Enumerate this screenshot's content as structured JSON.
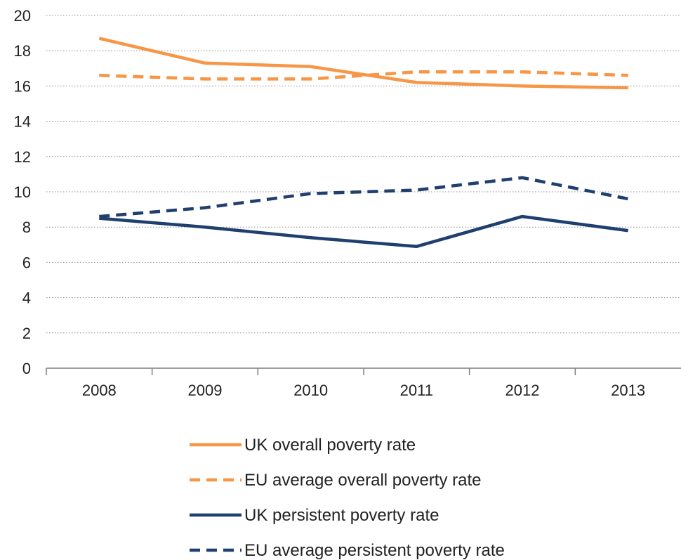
{
  "chart_data": {
    "type": "line",
    "title": "",
    "xlabel": "",
    "ylabel": "",
    "x": [
      "2008",
      "2009",
      "2010",
      "2011",
      "2012",
      "2013"
    ],
    "ylim": [
      0,
      20
    ],
    "yticks": [
      0,
      2,
      4,
      6,
      8,
      10,
      12,
      14,
      16,
      18,
      20
    ],
    "grid": true,
    "legend_position": "bottom",
    "series": [
      {
        "name": "UK overall poverty rate",
        "values": [
          18.7,
          17.3,
          17.1,
          16.2,
          16.0,
          15.9
        ],
        "color": "#f79646",
        "line_style": "solid"
      },
      {
        "name": "EU average overall poverty rate",
        "values": [
          16.6,
          16.4,
          16.4,
          16.8,
          16.8,
          16.6
        ],
        "color": "#f79646",
        "line_style": "dashed"
      },
      {
        "name": "UK persistent poverty rate",
        "values": [
          8.5,
          8.0,
          7.4,
          6.9,
          8.6,
          7.8
        ],
        "color": "#1f3f6e",
        "line_style": "solid"
      },
      {
        "name": "EU average persistent poverty rate",
        "values": [
          8.6,
          9.1,
          9.9,
          10.1,
          10.8,
          9.6
        ],
        "color": "#1f3f6e",
        "line_style": "dashed"
      }
    ]
  }
}
